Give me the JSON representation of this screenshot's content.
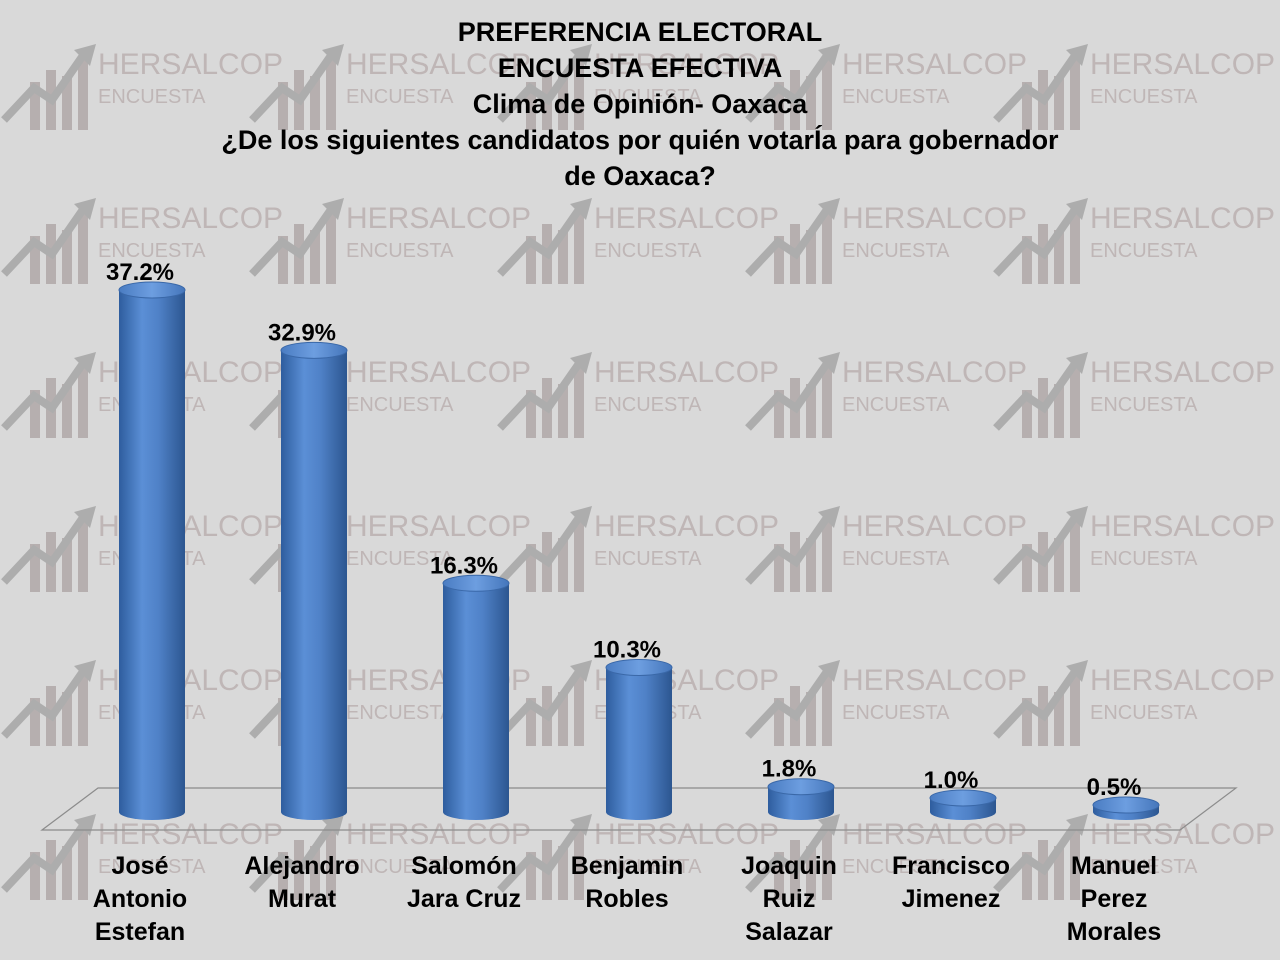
{
  "watermark": {
    "line1": "HERSALCOP",
    "line2": "ENCUESTA"
  },
  "chart_data": {
    "type": "bar",
    "title_lines": [
      "PREFERENCIA ELECTORAL",
      "ENCUESTA EFECTIVA",
      "Clima de Opinión- Oaxaca",
      "¿De los siguientes candidatos por quién votarÍa para gobernador",
      "de Oaxaca?"
    ],
    "categories": [
      [
        "José",
        "Antonio",
        "Estefan"
      ],
      [
        "Alejandro",
        "Murat"
      ],
      [
        "Salomón",
        "Jara Cruz"
      ],
      [
        "Benjamin",
        "Robles"
      ],
      [
        "Joaquin",
        "Ruiz",
        "Salazar"
      ],
      [
        "Francisco",
        "Jimenez"
      ],
      [
        "Manuel",
        "Perez",
        "Morales"
      ]
    ],
    "values": [
      37.2,
      32.9,
      16.3,
      10.3,
      1.8,
      1.0,
      0.5
    ],
    "data_labels": [
      "37.2%",
      "32.9%",
      "16.3%",
      "10.3%",
      "1.8%",
      "1.0%",
      "0.5%"
    ],
    "ylim": [
      0,
      40
    ],
    "bar_color": "#4f81c7",
    "bar_shape": "cylinder",
    "grid": false,
    "legend": "none"
  }
}
